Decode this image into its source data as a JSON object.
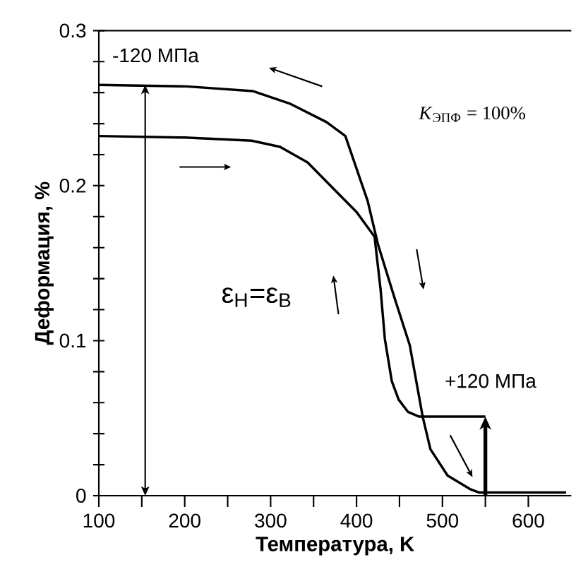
{
  "chart_data": {
    "type": "line",
    "xlabel": "Температура, K",
    "ylabel": "Деформация, %",
    "xlim": [
      100,
      650
    ],
    "ylim": [
      0,
      0.3
    ],
    "xticks": [
      100,
      {
        "value": 150,
        "label": null
      },
      200,
      {
        "value": 250,
        "label": null
      },
      300,
      {
        "value": 350,
        "label": null
      },
      400,
      {
        "value": 450,
        "label": null
      },
      500,
      {
        "value": 550,
        "label": null
      },
      600
    ],
    "yticks": [
      0,
      {
        "value": 0.02,
        "label": null
      },
      {
        "value": 0.04,
        "label": null
      },
      {
        "value": 0.06,
        "label": null
      },
      {
        "value": 0.08,
        "label": null
      },
      0.1,
      {
        "value": 0.12,
        "label": null
      },
      {
        "value": 0.14,
        "label": null
      },
      {
        "value": 0.16,
        "label": null
      },
      {
        "value": 0.18,
        "label": null
      },
      0.2,
      {
        "value": 0.22,
        "label": null
      },
      {
        "value": 0.24,
        "label": null
      },
      {
        "value": 0.26,
        "label": null
      },
      {
        "value": 0.28,
        "label": null
      },
      0.3
    ],
    "grid": false,
    "marker": "none",
    "line_style": "solid",
    "series": [
      {
        "color": "#000000",
        "x": [
          100,
          202,
          279,
          322,
          365,
          387,
          413,
          425,
          444,
          462,
          477,
          486,
          506,
          533,
          543,
          644
        ],
        "values": [
          0.265,
          0.264,
          0.261,
          0.253,
          0.241,
          0.232,
          0.19,
          0.162,
          0.128,
          0.097,
          0.051,
          0.03,
          0.013,
          0.004,
          0.002,
          0.002
        ]
      },
      {
        "color": "#000000",
        "x": [
          100,
          200,
          278,
          311,
          343,
          375,
          400,
          421,
          428,
          433,
          441,
          449,
          460,
          473,
          550
        ],
        "values": [
          0.232,
          0.231,
          0.229,
          0.225,
          0.215,
          0.197,
          0.183,
          0.167,
          0.133,
          0.101,
          0.074,
          0.062,
          0.054,
          0.051,
          0.051
        ]
      }
    ],
    "annotations": [
      "-120 МПа",
      "*K*$_{ЭПФ}$ = 100%",
      "ε$_{Н}$=ε$_{В}$",
      "+120 МПа"
    ]
  }
}
